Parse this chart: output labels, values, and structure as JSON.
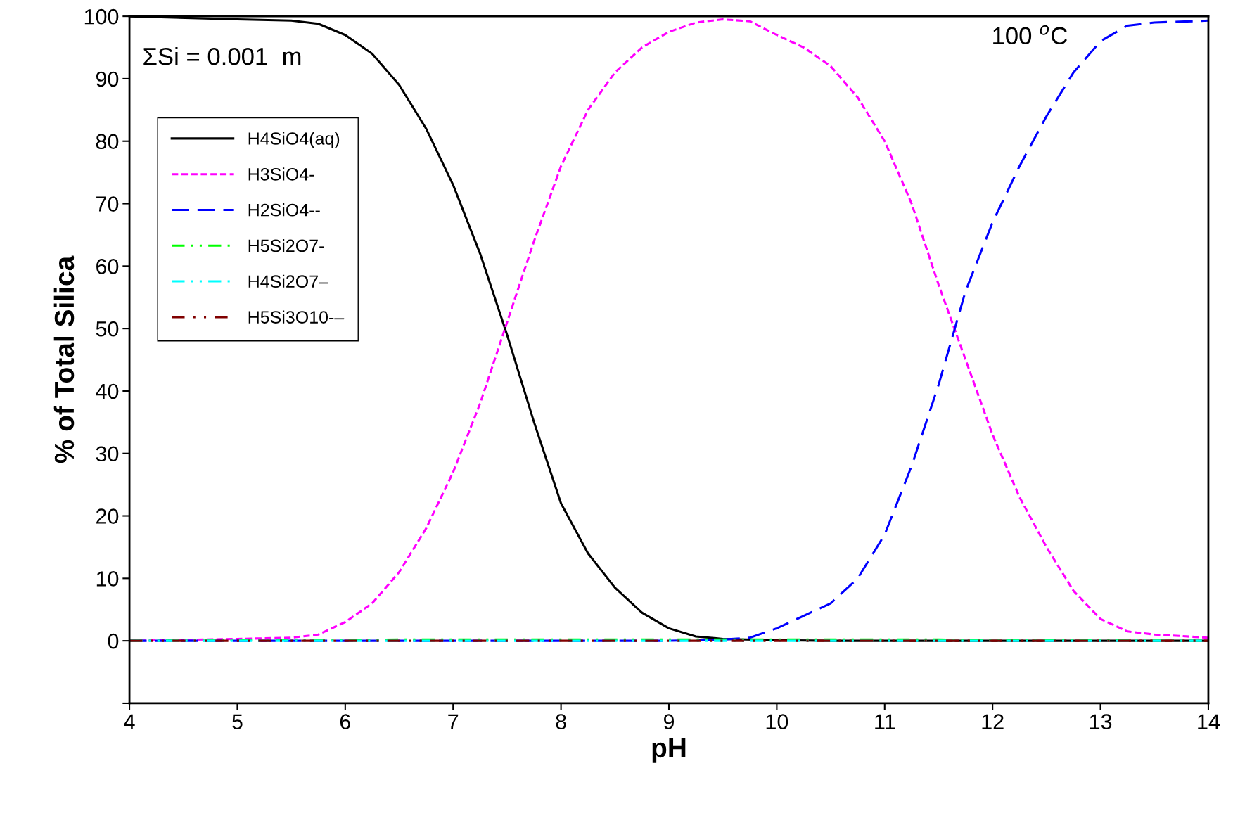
{
  "chart_data": {
    "type": "line",
    "xlabel": "pH",
    "ylabel": "% of Total Silica",
    "xlim": [
      4,
      14
    ],
    "xticks": [
      4,
      5,
      6,
      7,
      8,
      9,
      10,
      11,
      12,
      13,
      14
    ],
    "ylim": [
      -10,
      100
    ],
    "yticks": [
      {
        "value": -10,
        "label": null
      },
      0,
      10,
      20,
      30,
      40,
      50,
      60,
      70,
      80,
      90,
      100
    ],
    "grid": false,
    "legend": "top left",
    "marker": "none",
    "annotations": [
      "ΣSi = 0.001  m",
      "100 $^{o}$C"
    ],
    "series": [
      {
        "name": "H4SiO4(aq)",
        "color": "#000000",
        "line_style": "solid",
        "x": [
          4,
          5,
          5.5,
          5.75,
          6,
          6.25,
          6.5,
          6.75,
          7,
          7.25,
          7.5,
          7.75,
          8,
          8.25,
          8.5,
          8.75,
          9,
          9.25,
          9.5,
          10,
          10.5,
          14
        ],
        "values": [
          100,
          99.5,
          99.3,
          98.8,
          97,
          94,
          89,
          82,
          73,
          62,
          49,
          35,
          22,
          14,
          8.5,
          4.5,
          2,
          0.7,
          0.3,
          0.1,
          0,
          0
        ]
      },
      {
        "name": "H3SiO4-",
        "color": "#ff00ff",
        "line_style": "dotted",
        "x": [
          4,
          5,
          5.5,
          5.75,
          6,
          6.25,
          6.5,
          6.75,
          7,
          7.25,
          7.5,
          7.75,
          8,
          8.25,
          8.5,
          8.75,
          9,
          9.25,
          9.5,
          9.75,
          10,
          10.25,
          10.5,
          10.75,
          11,
          11.25,
          11.5,
          11.75,
          12,
          12.25,
          12.5,
          12.75,
          13,
          13.25,
          13.5,
          14
        ],
        "values": [
          0,
          0.3,
          0.5,
          1,
          3,
          6,
          11,
          18,
          27,
          38,
          51,
          64,
          76,
          85,
          91,
          95,
          97.5,
          99,
          99.5,
          99.2,
          97,
          95,
          92,
          87,
          80,
          70,
          57,
          45,
          33,
          23,
          15,
          8,
          3.5,
          1.5,
          1,
          0.5
        ]
      },
      {
        "name": "H2SiO4--",
        "color": "#0000ff",
        "line_style": "dashed",
        "x": [
          4,
          9,
          9.5,
          9.75,
          10,
          10.25,
          10.5,
          10.75,
          11,
          11.25,
          11.5,
          11.75,
          12,
          12.25,
          12.5,
          12.75,
          13,
          13.25,
          13.5,
          14
        ],
        "values": [
          0,
          0,
          0.2,
          0.5,
          2,
          4,
          6,
          10,
          17,
          28,
          41,
          56,
          67,
          76,
          84,
          91,
          96,
          98.5,
          99,
          99.3
        ]
      },
      {
        "name": "H5Si2O7-",
        "color": "#00ff00",
        "line_style": "dashdot",
        "x": [
          4,
          6.5,
          9,
          11.5,
          14
        ],
        "values": [
          0,
          0.2,
          0.2,
          0.2,
          0
        ]
      },
      {
        "name": "H4Si2O7–",
        "color": "#00ffff",
        "line_style": "dashdot",
        "x": [
          4,
          9,
          14
        ],
        "values": [
          0,
          0,
          0
        ]
      },
      {
        "name": "H5Si3O10-–",
        "color": "#800000",
        "line_style": "dashdotdot",
        "x": [
          4,
          9,
          14
        ],
        "values": [
          0,
          0,
          0
        ]
      }
    ]
  }
}
